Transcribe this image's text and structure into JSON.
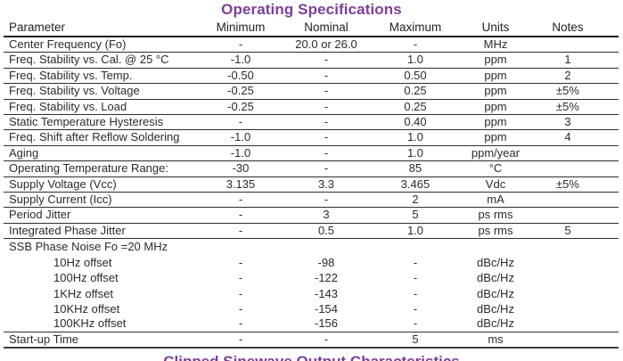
{
  "page": {
    "title": "Operating Specifications",
    "next_section_title": "Clipped Sinewave Output Characteristics",
    "accent_color": "#7d3f98",
    "text_color": "#2b2b2b"
  },
  "table": {
    "columns": [
      {
        "key": "parameter",
        "label": "Parameter"
      },
      {
        "key": "minimum",
        "label": "Minimum"
      },
      {
        "key": "nominal",
        "label": "Nominal"
      },
      {
        "key": "maximum",
        "label": "Maximum"
      },
      {
        "key": "units",
        "label": "Units"
      },
      {
        "key": "notes",
        "label": "Notes"
      }
    ],
    "rows": [
      {
        "parameter": "Center Frequency (Fo)",
        "minimum": "-",
        "nominal": "20.0 or 26.0",
        "maximum": "-",
        "units": "MHz",
        "notes": ""
      },
      {
        "parameter": "Freq. Stability vs. Cal. @ 25 °C",
        "minimum": "-1.0",
        "nominal": "-",
        "maximum": "1.0",
        "units": "ppm",
        "notes": "1"
      },
      {
        "parameter": "Freq. Stability vs. Temp.",
        "minimum": "-0.50",
        "nominal": "-",
        "maximum": "0.50",
        "units": "ppm",
        "notes": "2"
      },
      {
        "parameter": "Freq. Stability vs. Voltage",
        "minimum": "-0.25",
        "nominal": "-",
        "maximum": "0.25",
        "units": "ppm",
        "notes": "±5%"
      },
      {
        "parameter": "Freq. Stability vs. Load",
        "minimum": "-0.25",
        "nominal": "-",
        "maximum": "0.25",
        "units": "ppm",
        "notes": "±5%"
      },
      {
        "parameter": "Static Temperature Hysteresis",
        "minimum": "-",
        "nominal": "-",
        "maximum": "0.40",
        "units": "ppm",
        "notes": "3"
      },
      {
        "parameter": "Freq. Shift after Reflow Soldering",
        "minimum": "-1.0",
        "nominal": "-",
        "maximum": "1.0",
        "units": "ppm",
        "notes": "4"
      },
      {
        "parameter": "Aging",
        "minimum": "-1.0",
        "nominal": "-",
        "maximum": "1.0",
        "units": "ppm/year",
        "notes": ""
      },
      {
        "parameter": "Operating Temperature Range:",
        "minimum": "-30",
        "nominal": "-",
        "maximum": "85",
        "units": "°C",
        "notes": ""
      },
      {
        "parameter": "Supply Voltage (Vcc)",
        "minimum": "3.135",
        "nominal": "3.3",
        "maximum": "3.465",
        "units": "Vdc",
        "notes": "±5%"
      },
      {
        "parameter": "Supply Current (Icc)",
        "minimum": "-",
        "nominal": "-",
        "maximum": "2",
        "units": "mA",
        "notes": ""
      },
      {
        "parameter": "Period Jitter",
        "minimum": "-",
        "nominal": "3",
        "maximum": "5",
        "units": "ps rms",
        "notes": ""
      },
      {
        "parameter": "Integrated Phase Jitter",
        "minimum": "-",
        "nominal": "0.5",
        "maximum": "1.0",
        "units": "ps rms",
        "notes": "5"
      },
      {
        "parameter": "SSB Phase Noise Fo =20 MHz",
        "minimum": "",
        "nominal": "",
        "maximum": "",
        "units": "",
        "notes": "",
        "group": true,
        "no_border": true
      },
      {
        "parameter": "10Hz offset",
        "minimum": "-",
        "nominal": "-98",
        "maximum": "-",
        "units": "dBc/Hz",
        "notes": "",
        "indent": true,
        "no_border": true
      },
      {
        "parameter": "100Hz offset",
        "minimum": "-",
        "nominal": "-122",
        "maximum": "-",
        "units": "dBc/Hz",
        "notes": "",
        "indent": true,
        "no_border": true
      },
      {
        "parameter": "1KHz offset",
        "minimum": "-",
        "nominal": "-143",
        "maximum": "-",
        "units": "dBc/Hz",
        "notes": "",
        "indent": true,
        "no_border": true
      },
      {
        "parameter": "10KHz offset",
        "minimum": "-",
        "nominal": "-154",
        "maximum": "-",
        "units": "dBc/Hz",
        "notes": "",
        "indent": true,
        "no_border": true
      },
      {
        "parameter": "100KHz offset",
        "minimum": "-",
        "nominal": "-156",
        "maximum": "-",
        "units": "dBc/Hz",
        "notes": "",
        "indent": true
      },
      {
        "parameter": "Start-up Time",
        "minimum": "-",
        "nominal": "-",
        "maximum": "5",
        "units": "ms",
        "notes": ""
      }
    ]
  }
}
